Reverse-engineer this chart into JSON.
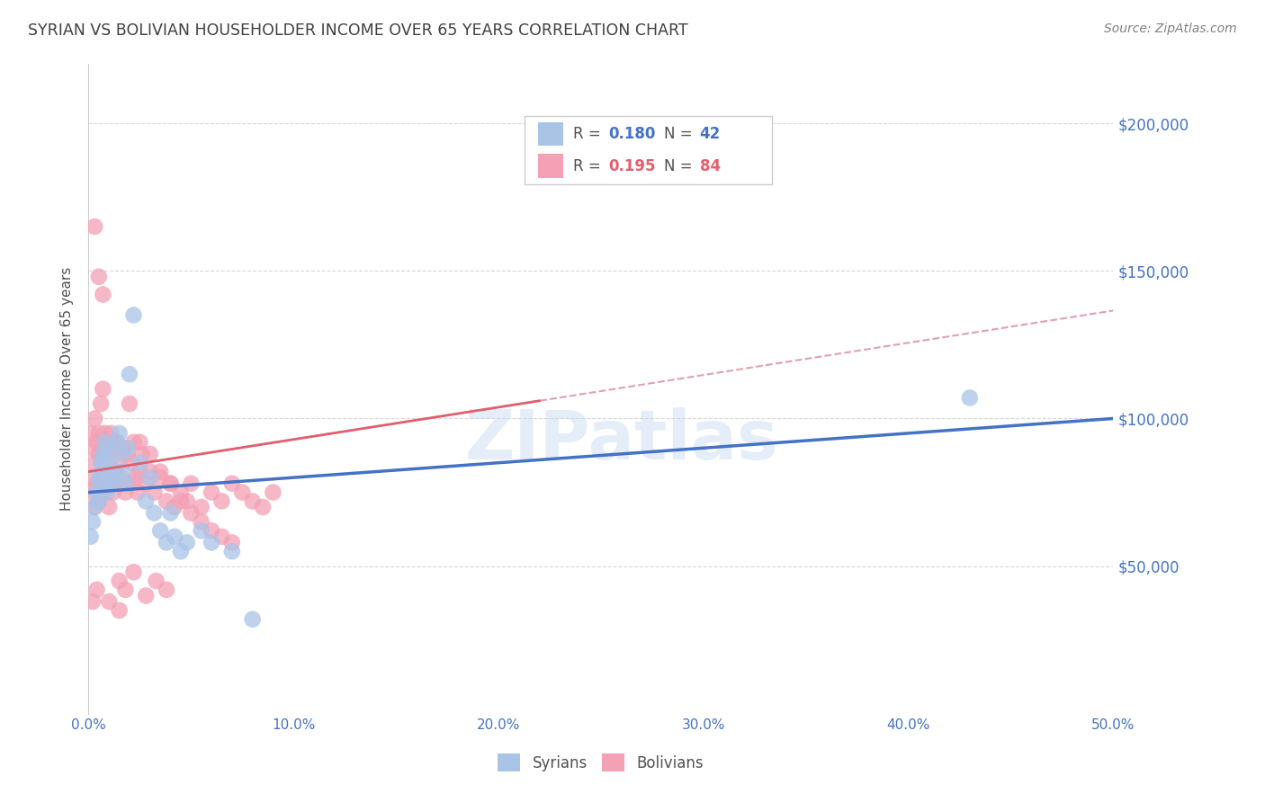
{
  "title": "SYRIAN VS BOLIVIAN HOUSEHOLDER INCOME OVER 65 YEARS CORRELATION CHART",
  "source": "Source: ZipAtlas.com",
  "ylabel": "Householder Income Over 65 years",
  "xlabel_ticks": [
    "0.0%",
    "10.0%",
    "20.0%",
    "30.0%",
    "40.0%",
    "50.0%"
  ],
  "ylabel_ticks": [
    "$50,000",
    "$100,000",
    "$150,000",
    "$200,000"
  ],
  "xlim": [
    0,
    0.5
  ],
  "ylim": [
    0,
    220000
  ],
  "watermark": "ZIPatlas",
  "syrian_color": "#aac4e8",
  "bolivian_color": "#f4a0b5",
  "syrian_line_color": "#4472c4",
  "bolivian_line_color": "#e06070",
  "bolivian_dashed_color": "#e0a0b0",
  "axis_label_color": "#4472c4",
  "title_color": "#404040",
  "source_color": "#808080",
  "background_color": "#ffffff",
  "grid_color": "#d8d8d8",
  "syrians_x": [
    0.001,
    0.002,
    0.003,
    0.004,
    0.005,
    0.005,
    0.006,
    0.006,
    0.007,
    0.007,
    0.008,
    0.008,
    0.009,
    0.009,
    0.01,
    0.01,
    0.011,
    0.012,
    0.013,
    0.014,
    0.015,
    0.016,
    0.017,
    0.018,
    0.019,
    0.02,
    0.022,
    0.025,
    0.028,
    0.03,
    0.032,
    0.035,
    0.038,
    0.04,
    0.042,
    0.045,
    0.048,
    0.055,
    0.06,
    0.07,
    0.43,
    0.08
  ],
  "syrians_y": [
    60000,
    65000,
    70000,
    75000,
    72000,
    80000,
    78000,
    85000,
    82000,
    88000,
    86000,
    92000,
    80000,
    75000,
    90000,
    85000,
    78000,
    82000,
    80000,
    92000,
    95000,
    88000,
    82000,
    78000,
    90000,
    115000,
    135000,
    85000,
    72000,
    80000,
    68000,
    62000,
    58000,
    68000,
    60000,
    55000,
    58000,
    62000,
    58000,
    55000,
    107000,
    32000
  ],
  "bolivians_x": [
    0.001,
    0.001,
    0.002,
    0.002,
    0.003,
    0.003,
    0.003,
    0.004,
    0.004,
    0.005,
    0.005,
    0.005,
    0.006,
    0.006,
    0.007,
    0.007,
    0.007,
    0.008,
    0.008,
    0.009,
    0.009,
    0.01,
    0.01,
    0.011,
    0.011,
    0.012,
    0.012,
    0.013,
    0.013,
    0.014,
    0.015,
    0.016,
    0.017,
    0.018,
    0.019,
    0.02,
    0.021,
    0.022,
    0.023,
    0.024,
    0.025,
    0.026,
    0.028,
    0.03,
    0.032,
    0.035,
    0.038,
    0.04,
    0.042,
    0.045,
    0.048,
    0.05,
    0.055,
    0.06,
    0.065,
    0.07,
    0.075,
    0.08,
    0.085,
    0.09,
    0.003,
    0.005,
    0.007,
    0.02,
    0.025,
    0.03,
    0.035,
    0.04,
    0.045,
    0.05,
    0.055,
    0.06,
    0.065,
    0.07,
    0.015,
    0.018,
    0.022,
    0.028,
    0.033,
    0.038,
    0.002,
    0.004,
    0.01,
    0.015
  ],
  "bolivians_y": [
    80000,
    95000,
    75000,
    90000,
    70000,
    85000,
    100000,
    78000,
    92000,
    72000,
    88000,
    95000,
    80000,
    105000,
    75000,
    90000,
    110000,
    82000,
    95000,
    78000,
    92000,
    70000,
    88000,
    80000,
    95000,
    75000,
    90000,
    82000,
    78000,
    92000,
    85000,
    80000,
    90000,
    75000,
    88000,
    78000,
    85000,
    92000,
    80000,
    75000,
    82000,
    88000,
    78000,
    82000,
    75000,
    80000,
    72000,
    78000,
    70000,
    75000,
    72000,
    78000,
    70000,
    75000,
    72000,
    78000,
    75000,
    72000,
    70000,
    75000,
    165000,
    148000,
    142000,
    105000,
    92000,
    88000,
    82000,
    78000,
    72000,
    68000,
    65000,
    62000,
    60000,
    58000,
    45000,
    42000,
    48000,
    40000,
    45000,
    42000,
    38000,
    42000,
    38000,
    35000
  ]
}
